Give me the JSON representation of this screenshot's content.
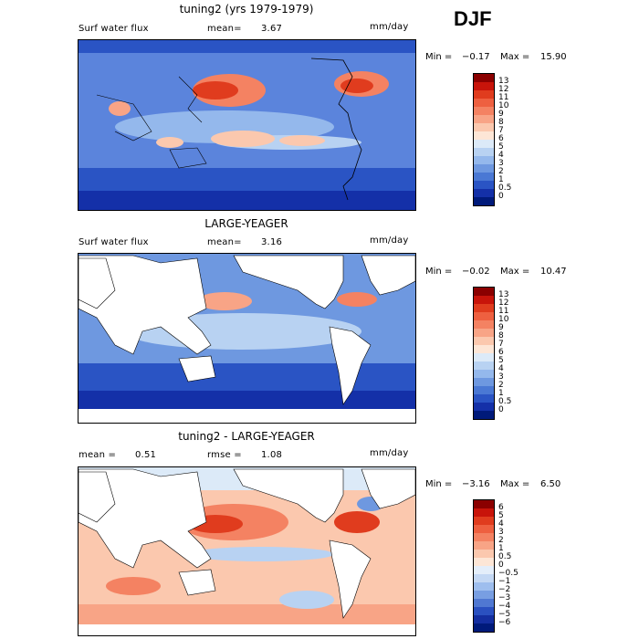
{
  "season": "DJF",
  "panels": [
    {
      "title": "tuning2 (yrs 1979-1979)",
      "left_label": "Surf water flux",
      "mean_label": "mean=",
      "mean_value": "3.67",
      "units": "mm/day",
      "min_label": "Min =",
      "min_value": "−0.17",
      "max_label": "Max =",
      "max_value": "15.90",
      "colorbar_labels": [
        "13",
        "12",
        "11",
        "10",
        "9",
        "8",
        "7",
        "6",
        "5",
        "4",
        "3",
        "2",
        "1",
        "0.5",
        "0"
      ],
      "colorbar_colors": [
        "#8b0000",
        "#c8140a",
        "#e03c1e",
        "#ee6040",
        "#f48262",
        "#f8a486",
        "#fbc8ae",
        "#fde6d6",
        "#dceaf8",
        "#b8d2f2",
        "#94b8ec",
        "#6e98e0",
        "#4a78d4",
        "#2a54c4",
        "#1430a8",
        "#001a7a"
      ]
    },
    {
      "title": "LARGE-YEAGER",
      "left_label": "Surf water flux",
      "mean_label": "mean=",
      "mean_value": "3.16",
      "units": "mm/day",
      "min_label": "Min =",
      "min_value": "−0.02",
      "max_label": "Max =",
      "max_value": "10.47",
      "colorbar_labels": [
        "13",
        "12",
        "11",
        "10",
        "9",
        "8",
        "7",
        "6",
        "5",
        "4",
        "3",
        "2",
        "1",
        "0.5",
        "0"
      ],
      "colorbar_colors": [
        "#8b0000",
        "#c8140a",
        "#e03c1e",
        "#ee6040",
        "#f48262",
        "#f8a486",
        "#fbc8ae",
        "#fde6d6",
        "#dceaf8",
        "#b8d2f2",
        "#94b8ec",
        "#6e98e0",
        "#4a78d4",
        "#2a54c4",
        "#1430a8",
        "#001a7a"
      ]
    },
    {
      "title": "tuning2 - LARGE-YEAGER",
      "left_label": "mean =",
      "left_value": "0.51",
      "mean_label": "rmse =",
      "mean_value": "1.08",
      "units": "mm/day",
      "min_label": "Min =",
      "min_value": "−3.16",
      "max_label": "Max =",
      "max_value": "6.50",
      "colorbar_labels": [
        "6",
        "5",
        "4",
        "3",
        "2",
        "1",
        "0.5",
        "0",
        "−0.5",
        "−1",
        "−2",
        "−3",
        "−4",
        "−5",
        "−6"
      ],
      "colorbar_colors": [
        "#8b0000",
        "#c8140a",
        "#e03c1e",
        "#ee6040",
        "#f48262",
        "#f8a486",
        "#fbc8ae",
        "#fde6d6",
        "#e4eefa",
        "#c4d8f4",
        "#9ebeee",
        "#789ee2",
        "#5078d2",
        "#2a50c0",
        "#142ea0",
        "#001a7a"
      ]
    }
  ]
}
